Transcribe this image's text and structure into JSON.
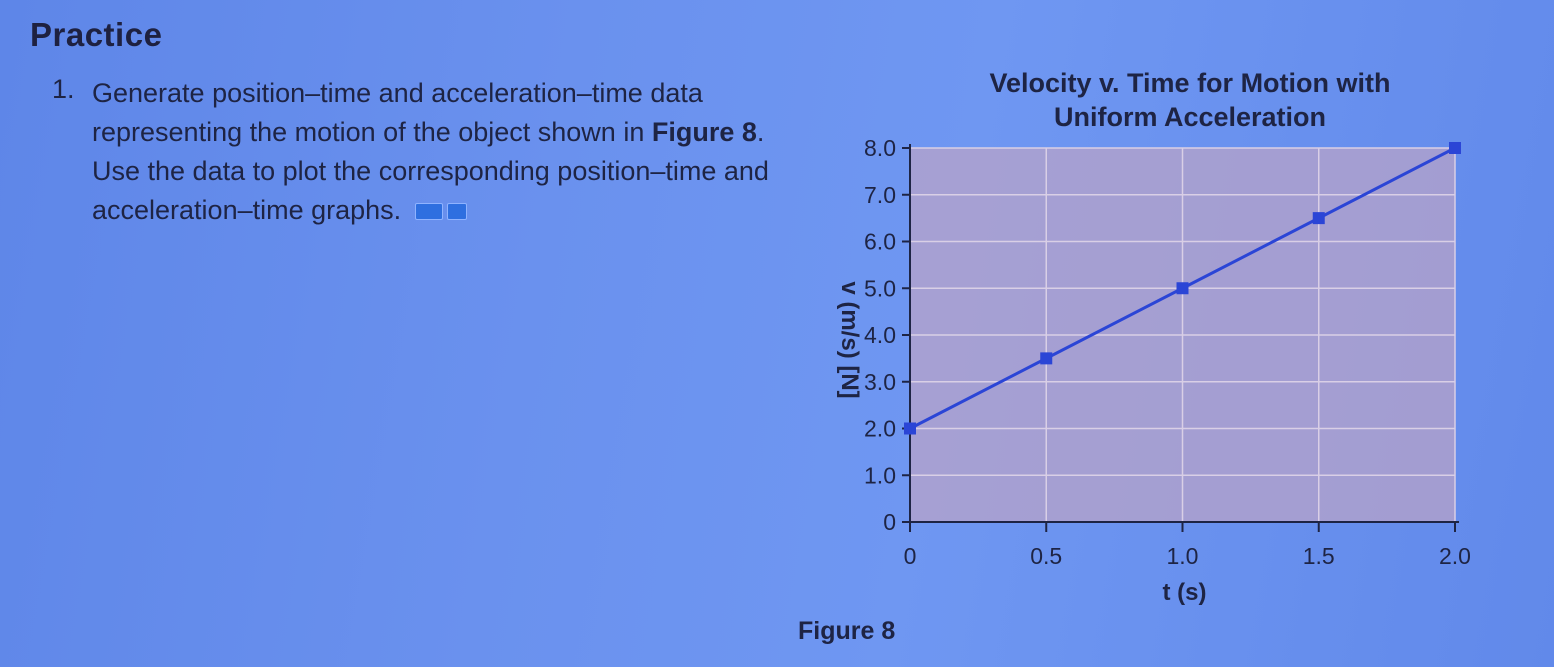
{
  "page": {
    "heading": "Practice"
  },
  "question": {
    "number": "1.",
    "text_before": "Generate position–time and acceleration–time data representing the motion of the object shown in ",
    "figure_ref": "Figure 8",
    "text_after": ". Use the data to plot the corresponding position–time and acceleration–time graphs.",
    "icons": [
      "study-icon",
      "concept-icon"
    ]
  },
  "figure": {
    "caption": "Figure 8"
  },
  "chart_data": {
    "type": "line",
    "title": "Velocity v. Time for Motion with Uniform Acceleration",
    "title_line1": "Velocity v. Time for Motion with",
    "title_line2": "Uniform Acceleration",
    "xlabel": "t (s)",
    "ylabel": "v (m/s) [N]",
    "xlim": [
      0,
      2.0
    ],
    "ylim": [
      0,
      8.0
    ],
    "xticks": [
      0,
      0.5,
      1.0,
      1.5,
      2.0
    ],
    "xtick_labels": [
      "0",
      "0.5",
      "1.0",
      "1.5",
      "2.0"
    ],
    "yticks": [
      0,
      1.0,
      2.0,
      3.0,
      4.0,
      5.0,
      6.0,
      7.0,
      8.0
    ],
    "ytick_labels": [
      "0",
      "1.0",
      "2.0",
      "3.0",
      "4.0",
      "5.0",
      "6.0",
      "7.0",
      "8.0"
    ],
    "grid": true,
    "series": [
      {
        "x": [
          0,
          0.5,
          1.0,
          1.5,
          2.0
        ],
        "y": [
          2.0,
          3.5,
          5.0,
          6.5,
          8.0
        ],
        "color": "#2b45d6",
        "marker": "square"
      }
    ],
    "colors": {
      "plot_background": "#b8a3c8",
      "gridline": "#d9cfe6",
      "axis": "#1e2444"
    }
  }
}
